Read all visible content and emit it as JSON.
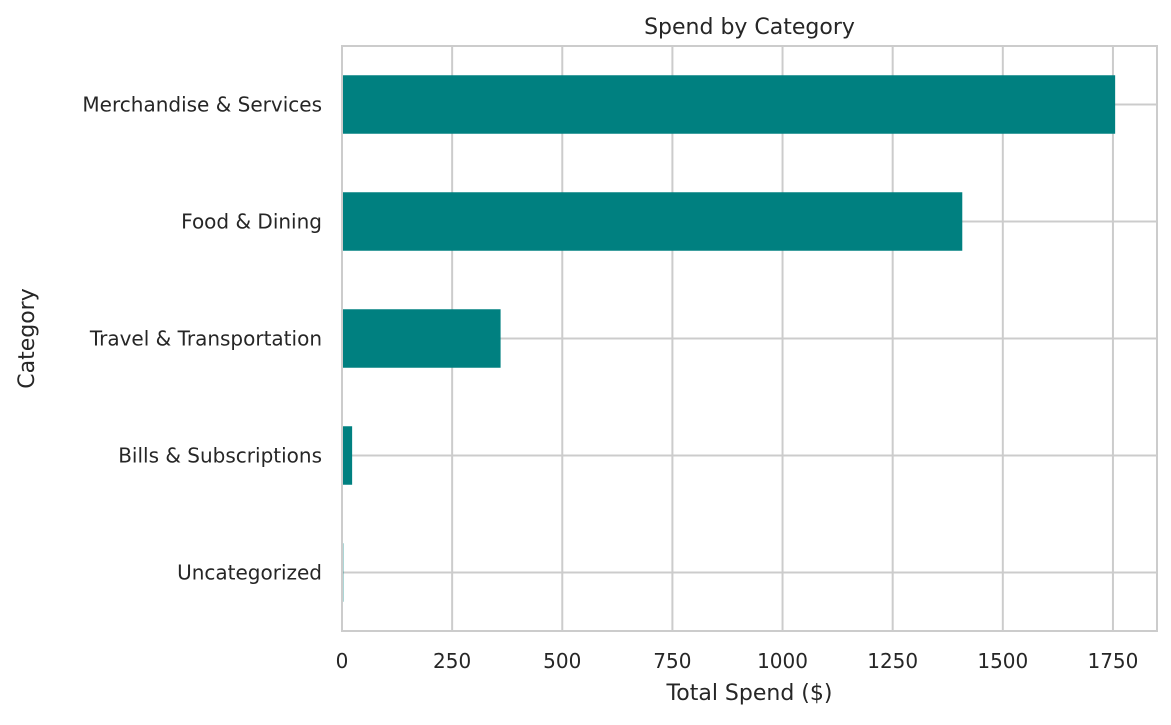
{
  "chart_data": {
    "type": "bar",
    "orientation": "horizontal",
    "title": "Spend by Category",
    "xlabel": "Total Spend ($)",
    "ylabel": "Category",
    "categories": [
      "Merchandise & Services",
      "Food & Dining",
      "Travel & Transportation",
      "Bills & Subscriptions",
      "Uncategorized"
    ],
    "values": [
      1755,
      1408,
      360,
      23,
      3
    ],
    "xlim": [
      0,
      1850
    ],
    "xticks": [
      0,
      250,
      500,
      750,
      1000,
      1250,
      1500,
      1750
    ],
    "grid": true,
    "bar_color": "#008080",
    "grid_color": "#cccccc"
  }
}
